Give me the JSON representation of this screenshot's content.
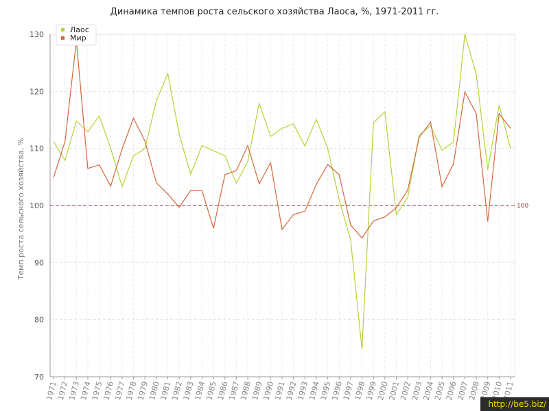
{
  "title": "Динамика темпов роста сельского хозяйства Лаоса, %, 1971-2011 гг.",
  "watermark": "http://be5.biz/",
  "colors": {
    "laos": "#b5d334",
    "world": "#d4673a",
    "refline": "#8b3a3a"
  },
  "chart_data": {
    "type": "line",
    "title": "Динамика темпов роста сельского хозяйства Лаоса, %, 1971-2011 гг.",
    "xlabel": "",
    "ylabel": "Темп роста сельского хозяйства, %",
    "ylim": [
      70,
      130
    ],
    "yticks": [
      70,
      80,
      90,
      100,
      110,
      120,
      130
    ],
    "grid": true,
    "legend_position": "top-left",
    "reference_line": {
      "value": 100,
      "label": "100"
    },
    "x": [
      "1971",
      "1972",
      "1973",
      "1974",
      "1975",
      "1976",
      "1977",
      "1978",
      "1979",
      "1980",
      "1981",
      "1982",
      "1983",
      "1984",
      "1985",
      "1986",
      "1987",
      "1988",
      "1989",
      "1990",
      "1991",
      "1992",
      "1993",
      "1994",
      "1995",
      "1996",
      "1997",
      "1998",
      "1999",
      "2000",
      "2001",
      "2002",
      "2003",
      "2004",
      "2005",
      "2006",
      "2007",
      "2008",
      "2009",
      "2010",
      "2011"
    ],
    "series": [
      {
        "name": "Лаос",
        "color": "#b5d334",
        "values": [
          111.2,
          107.9,
          114.8,
          112.9,
          115.7,
          110.0,
          103.3,
          108.7,
          110.0,
          118.3,
          123.1,
          112.5,
          105.5,
          110.5,
          109.6,
          108.7,
          103.9,
          107.7,
          117.9,
          112.1,
          113.5,
          114.3,
          110.4,
          115.1,
          110.0,
          101.0,
          94.0,
          74.8,
          114.5,
          116.4,
          98.4,
          101.4,
          112.3,
          114.0,
          109.7,
          111.1,
          130.0,
          123.0,
          106.3,
          117.6,
          110.0
        ]
      },
      {
        "name": "Мир",
        "color": "#d4673a",
        "values": [
          104.9,
          111.2,
          128.9,
          106.5,
          107.1,
          103.4,
          109.9,
          115.3,
          111.3,
          104.0,
          102.0,
          99.7,
          102.6,
          102.6,
          96.0,
          105.4,
          106.1,
          110.5,
          103.8,
          107.5,
          95.8,
          98.4,
          99.0,
          103.7,
          107.2,
          105.4,
          96.6,
          94.3,
          97.3,
          98.0,
          99.6,
          102.7,
          111.9,
          114.6,
          103.3,
          107.3,
          119.9,
          116.1,
          97.2,
          116.1,
          113.5
        ]
      }
    ]
  }
}
